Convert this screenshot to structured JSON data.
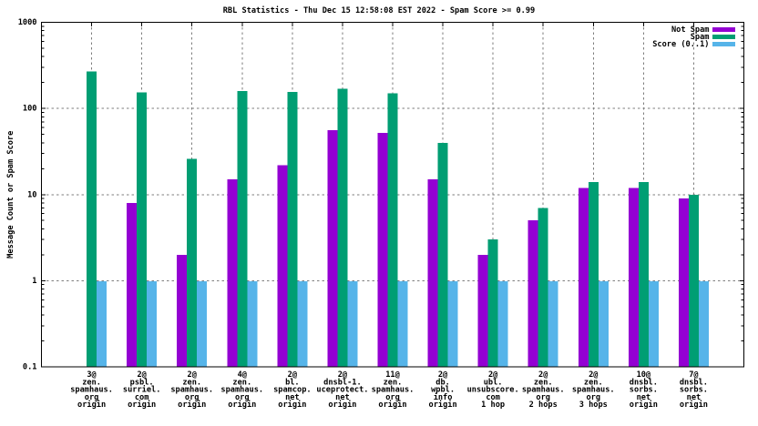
{
  "window": {
    "background": "#ffffff",
    "text_color": "#000000",
    "grid_color": "#7e7e7e",
    "border_color": "#000000"
  },
  "chart_data": {
    "type": "bar",
    "title": "RBL Statistics - Thu Dec 15 12:58:08 EST 2022 - Spam Score >= 0.99",
    "xlabel": "",
    "ylabel": "Message Count or Spam Score",
    "y_scale": "log",
    "ylim": [
      0.1,
      1000
    ],
    "ytick_labels": [
      "0.1",
      "1",
      "10",
      "100",
      "1000"
    ],
    "ytick_values": [
      0.1,
      1,
      10,
      100,
      1000
    ],
    "grid": true,
    "legend_position": "top-right-inside",
    "legend_entries": [
      "Not Spam",
      "Spam",
      "Score (0..1)"
    ],
    "categories": [
      [
        "3@",
        "zen.",
        "spamhaus.",
        "org",
        "origin"
      ],
      [
        "2@",
        "psbl.",
        "surriel.",
        "com",
        "origin"
      ],
      [
        "2@",
        "zen.",
        "spamhaus.",
        "org",
        "origin"
      ],
      [
        "4@",
        "zen.",
        "spamhaus.",
        "org",
        "origin"
      ],
      [
        "2@",
        "bl.",
        "spamcop.",
        "net",
        "origin"
      ],
      [
        "2@",
        "dnsbl-1.",
        "uceprotect.",
        "net",
        "origin"
      ],
      [
        "11@",
        "zen.",
        "spamhaus.",
        "org",
        "origin"
      ],
      [
        "2@",
        "db.",
        "wpbl.",
        "info",
        "origin"
      ],
      [
        "2@",
        "ubl.",
        "unsubscore.",
        "com",
        "1 hop"
      ],
      [
        "2@",
        "zen.",
        "spamhaus.",
        "org",
        "2 hops"
      ],
      [
        "2@",
        "zen.",
        "spamhaus.",
        "org",
        "3 hops"
      ],
      [
        "10@",
        "dnsbl.",
        "sorbs.",
        "net",
        "origin"
      ],
      [
        "7@",
        "dnsbl.",
        "sorbs.",
        "net",
        "origin"
      ]
    ],
    "series": [
      {
        "name": "Not Spam",
        "color": "#9400d3",
        "values": [
          0,
          8,
          2,
          15,
          22,
          56,
          52,
          15,
          2,
          5,
          12,
          12,
          9
        ]
      },
      {
        "name": "Spam",
        "color": "#009e73",
        "values": [
          268,
          153,
          26,
          160,
          155,
          169,
          150,
          40,
          3,
          7,
          14,
          14,
          10
        ]
      },
      {
        "name": "Score (0..1)",
        "color": "#56b4e9",
        "values": [
          0.98,
          0.98,
          0.98,
          0.98,
          0.98,
          0.98,
          0.98,
          0.98,
          0.98,
          0.98,
          0.98,
          0.98,
          0.98
        ]
      }
    ]
  }
}
